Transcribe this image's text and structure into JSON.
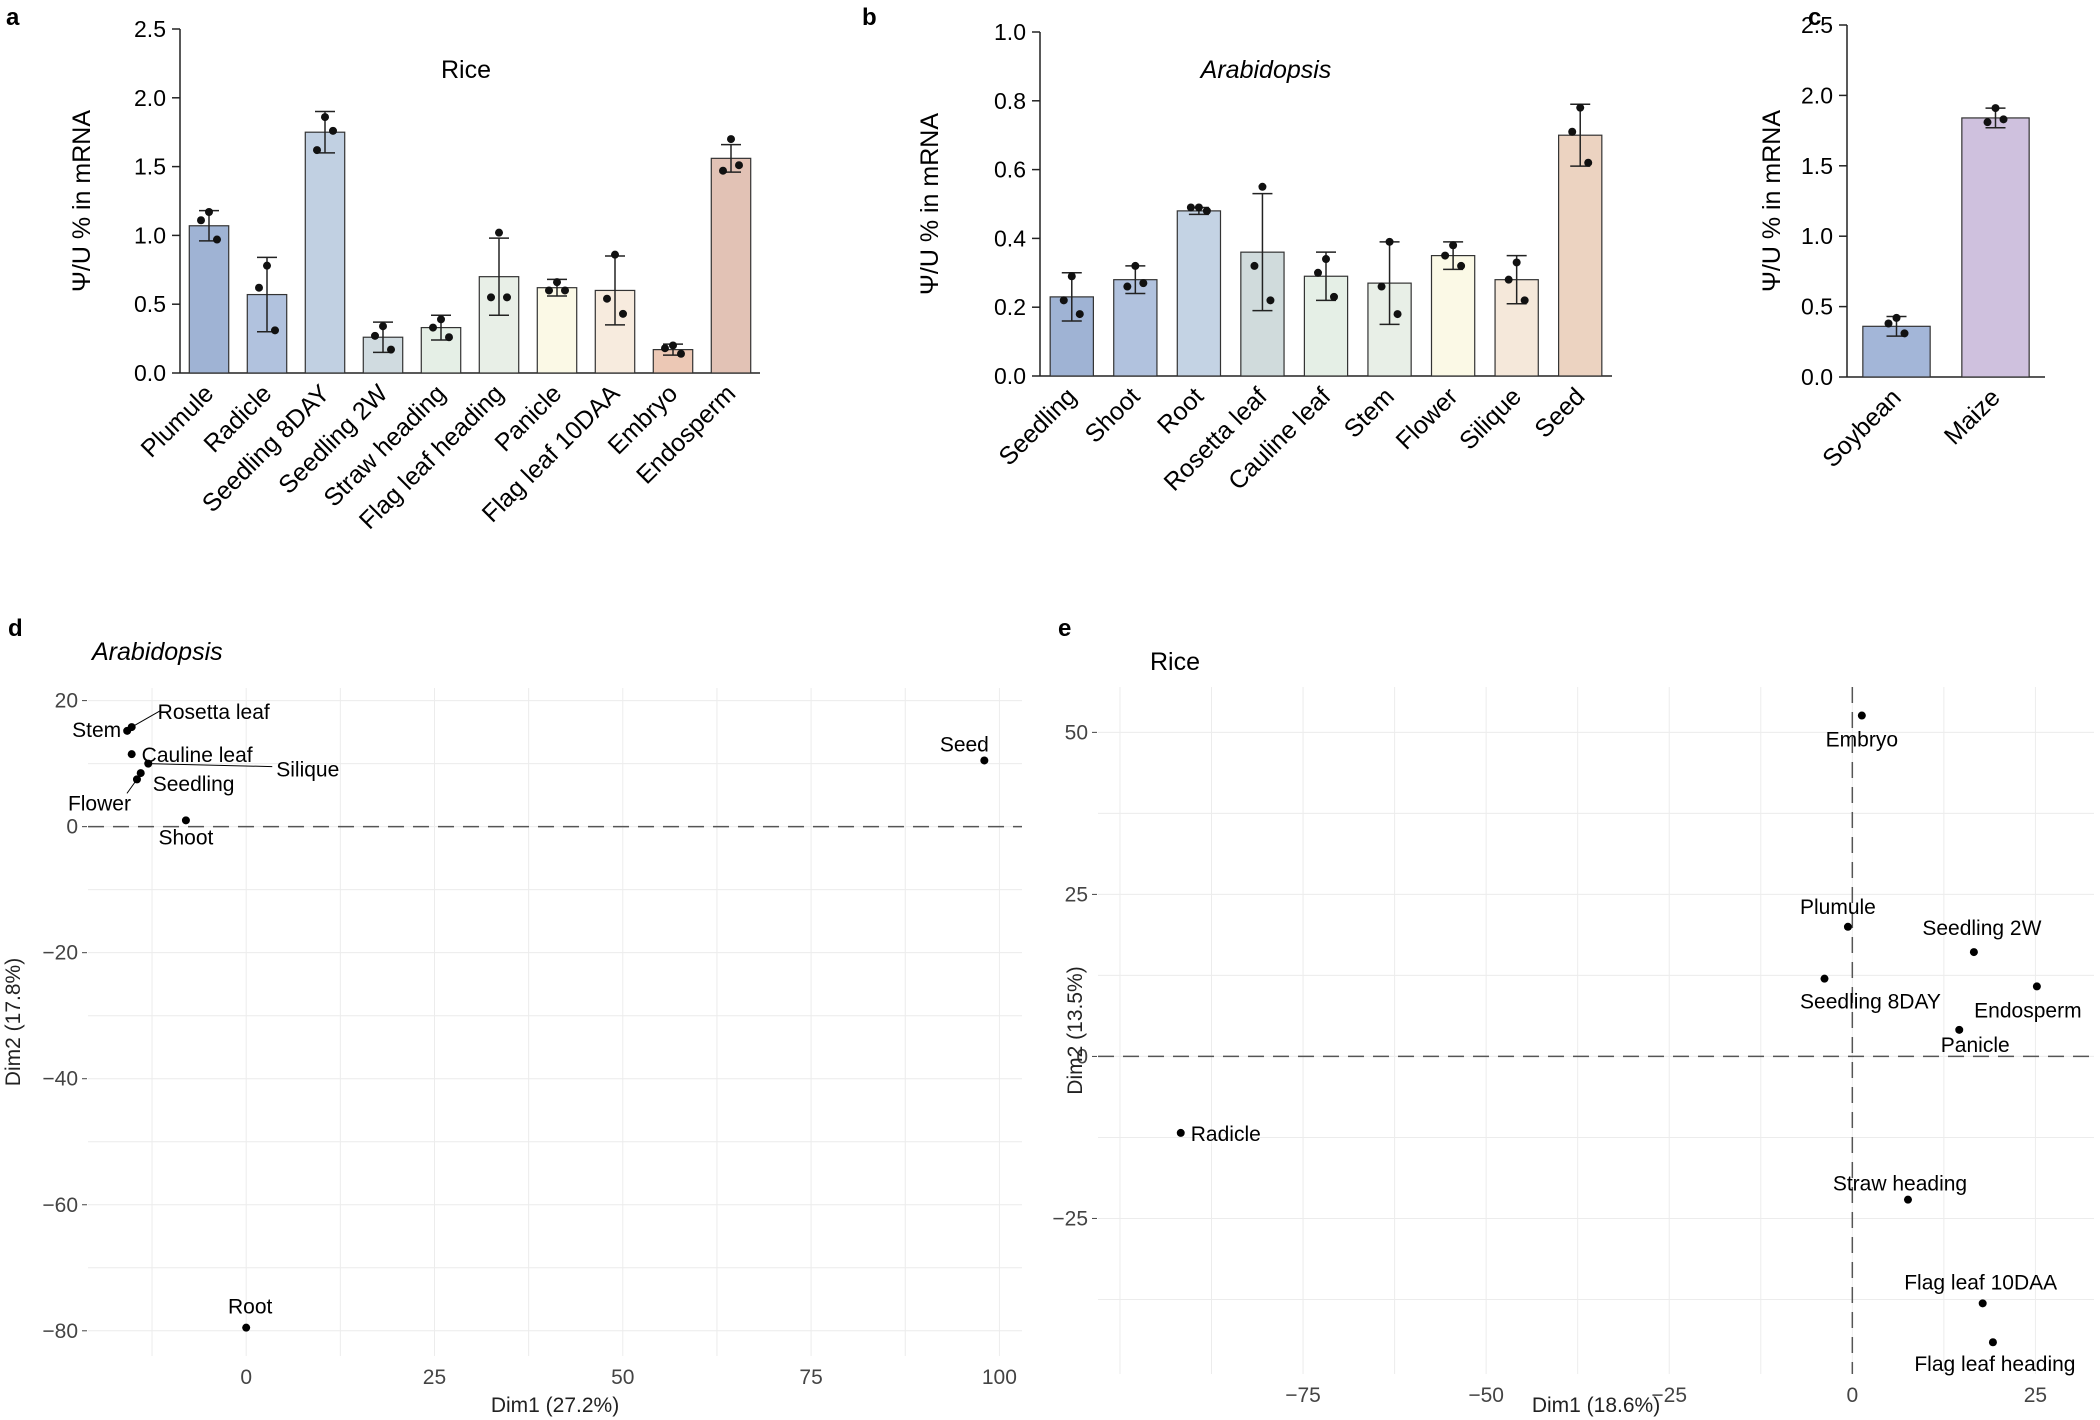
{
  "chart_data": [
    {
      "panel": "a",
      "type": "bar",
      "title": "Rice",
      "title_italic": false,
      "ylabel": "Ψ/U % in mRNA",
      "xlabel": "",
      "ylim": [
        0,
        2.5
      ],
      "yticks": [
        "0.0",
        "0.5",
        "1.0",
        "1.5",
        "2.0",
        "2.5"
      ],
      "categories": [
        "Plumule",
        "Radicle",
        "Seedling 8DAY",
        "Seedling 2W",
        "Straw heading",
        "Flag leaf heading",
        "Panicle",
        "Flag leaf 10DAA",
        "Embryo",
        "Endosperm"
      ],
      "values": [
        1.07,
        0.57,
        1.75,
        0.26,
        0.33,
        0.7,
        0.62,
        0.6,
        0.17,
        1.56
      ],
      "errors": [
        0.11,
        0.27,
        0.15,
        0.11,
        0.09,
        0.28,
        0.06,
        0.25,
        0.04,
        0.1
      ],
      "points": [
        [
          1.17,
          1.11,
          0.97
        ],
        [
          0.78,
          0.62,
          0.31
        ],
        [
          1.86,
          1.62,
          1.76
        ],
        [
          0.34,
          0.27,
          0.17
        ],
        [
          0.39,
          0.33,
          0.26
        ],
        [
          1.02,
          0.55,
          0.55
        ],
        [
          0.66,
          0.6,
          0.6
        ],
        [
          0.86,
          0.54,
          0.43
        ],
        [
          0.2,
          0.18,
          0.14
        ],
        [
          1.7,
          1.47,
          1.51
        ]
      ],
      "colors": [
        "#9fb3d4",
        "#b1c2de",
        "#c1d0e2",
        "#d0dbe0",
        "#e5efe6",
        "#e8efe7",
        "#fbf9e6",
        "#f7ebde",
        "#ecc8b5",
        "#e2c2b5"
      ]
    },
    {
      "panel": "b",
      "type": "bar",
      "title": "Arabidopsis",
      "title_italic": true,
      "ylabel": "Ψ/U % in mRNA",
      "xlabel": "",
      "ylim": [
        0,
        1.0
      ],
      "yticks": [
        "0.0",
        "0.2",
        "0.4",
        "0.6",
        "0.8",
        "1.0"
      ],
      "categories": [
        "Seedling",
        "Shoot",
        "Root",
        "Rosetta leaf",
        "Cauline leaf",
        "Stem",
        "Flower",
        "Silique",
        "Seed"
      ],
      "values": [
        0.23,
        0.28,
        0.48,
        0.36,
        0.29,
        0.27,
        0.35,
        0.28,
        0.7
      ],
      "errors": [
        0.07,
        0.04,
        0.01,
        0.17,
        0.07,
        0.12,
        0.04,
        0.07,
        0.09
      ],
      "points": [
        [
          0.29,
          0.22,
          0.18
        ],
        [
          0.32,
          0.26,
          0.27
        ],
        [
          0.49,
          0.49,
          0.48
        ],
        [
          0.55,
          0.32,
          0.22
        ],
        [
          0.34,
          0.3,
          0.23
        ],
        [
          0.39,
          0.26,
          0.18
        ],
        [
          0.38,
          0.35,
          0.32
        ],
        [
          0.33,
          0.28,
          0.22
        ],
        [
          0.78,
          0.71,
          0.62
        ]
      ],
      "colors": [
        "#9fb3d4",
        "#b1c2de",
        "#c4d3e4",
        "#d0dbdc",
        "#e5efe6",
        "#e8efe7",
        "#fbf9e6",
        "#f5e8da",
        "#ecd3c1"
      ]
    },
    {
      "panel": "c",
      "type": "bar",
      "title": "",
      "title_italic": false,
      "ylabel": "Ψ/U % in mRNA",
      "xlabel": "",
      "ylim": [
        0,
        2.5
      ],
      "yticks": [
        "0.0",
        "0.5",
        "1.0",
        "1.5",
        "2.0",
        "2.5"
      ],
      "categories": [
        "Soybean",
        "Maize"
      ],
      "values": [
        0.36,
        1.84
      ],
      "errors": [
        0.07,
        0.07
      ],
      "points": [
        [
          0.42,
          0.38,
          0.31
        ],
        [
          1.91,
          1.81,
          1.83
        ]
      ],
      "colors": [
        "#a3b6d8",
        "#cfc1de"
      ]
    },
    {
      "panel": "d",
      "type": "scatter",
      "title": "Arabidopsis",
      "title_italic": true,
      "xlabel": "Dim1 (27.2%)",
      "ylabel": "Dim2 (17.8%)",
      "xlim": [
        -21,
        103
      ],
      "ylim": [
        -84,
        22
      ],
      "xticks": [
        0,
        25,
        50,
        75,
        100
      ],
      "yticks": [
        20,
        0,
        -20,
        -40,
        -60,
        -80
      ],
      "points": [
        {
          "label": "Rosetta leaf",
          "x": -15.2,
          "y": 15.8
        },
        {
          "label": "Stem",
          "x": -15.8,
          "y": 15.2
        },
        {
          "label": "Cauline leaf",
          "x": -15.2,
          "y": 11.5
        },
        {
          "label": "Silique",
          "x": -13.0,
          "y": 10.0
        },
        {
          "label": "Seedling",
          "x": -14.0,
          "y": 8.5
        },
        {
          "label": "Flower",
          "x": -14.5,
          "y": 7.5
        },
        {
          "label": "Shoot",
          "x": -8.0,
          "y": 1.0
        },
        {
          "label": "Seed",
          "x": 98.0,
          "y": 10.5
        },
        {
          "label": "Root",
          "x": 0.0,
          "y": -79.5
        }
      ]
    },
    {
      "panel": "e",
      "type": "scatter",
      "title": "Rice",
      "title_italic": false,
      "xlabel": "Dim1 (18.6%)",
      "ylabel": "Dim2 (13.5%)",
      "xlim": [
        -103,
        33
      ],
      "ylim": [
        -49,
        57
      ],
      "xticks": [
        -75,
        -50,
        -25,
        0,
        25
      ],
      "yticks": [
        50,
        25,
        0,
        -25
      ],
      "points": [
        {
          "label": "Embryo",
          "x": 1.3,
          "y": 52.6
        },
        {
          "label": "Plumule",
          "x": -0.6,
          "y": 20.0
        },
        {
          "label": "Seedling 2W",
          "x": 16.6,
          "y": 16.1
        },
        {
          "label": "Seedling 8DAY",
          "x": -3.8,
          "y": 12.0
        },
        {
          "label": "Endosperm",
          "x": 25.2,
          "y": 10.8
        },
        {
          "label": "Panicle",
          "x": 14.6,
          "y": 4.1
        },
        {
          "label": "Radicle",
          "x": -91.7,
          "y": -11.8
        },
        {
          "label": "Straw heading",
          "x": 7.6,
          "y": -22.1
        },
        {
          "label": "Flag leaf 10DAA",
          "x": 17.8,
          "y": -38.1
        },
        {
          "label": "Flag leaf heading",
          "x": 19.2,
          "y": -44.1
        }
      ]
    }
  ]
}
